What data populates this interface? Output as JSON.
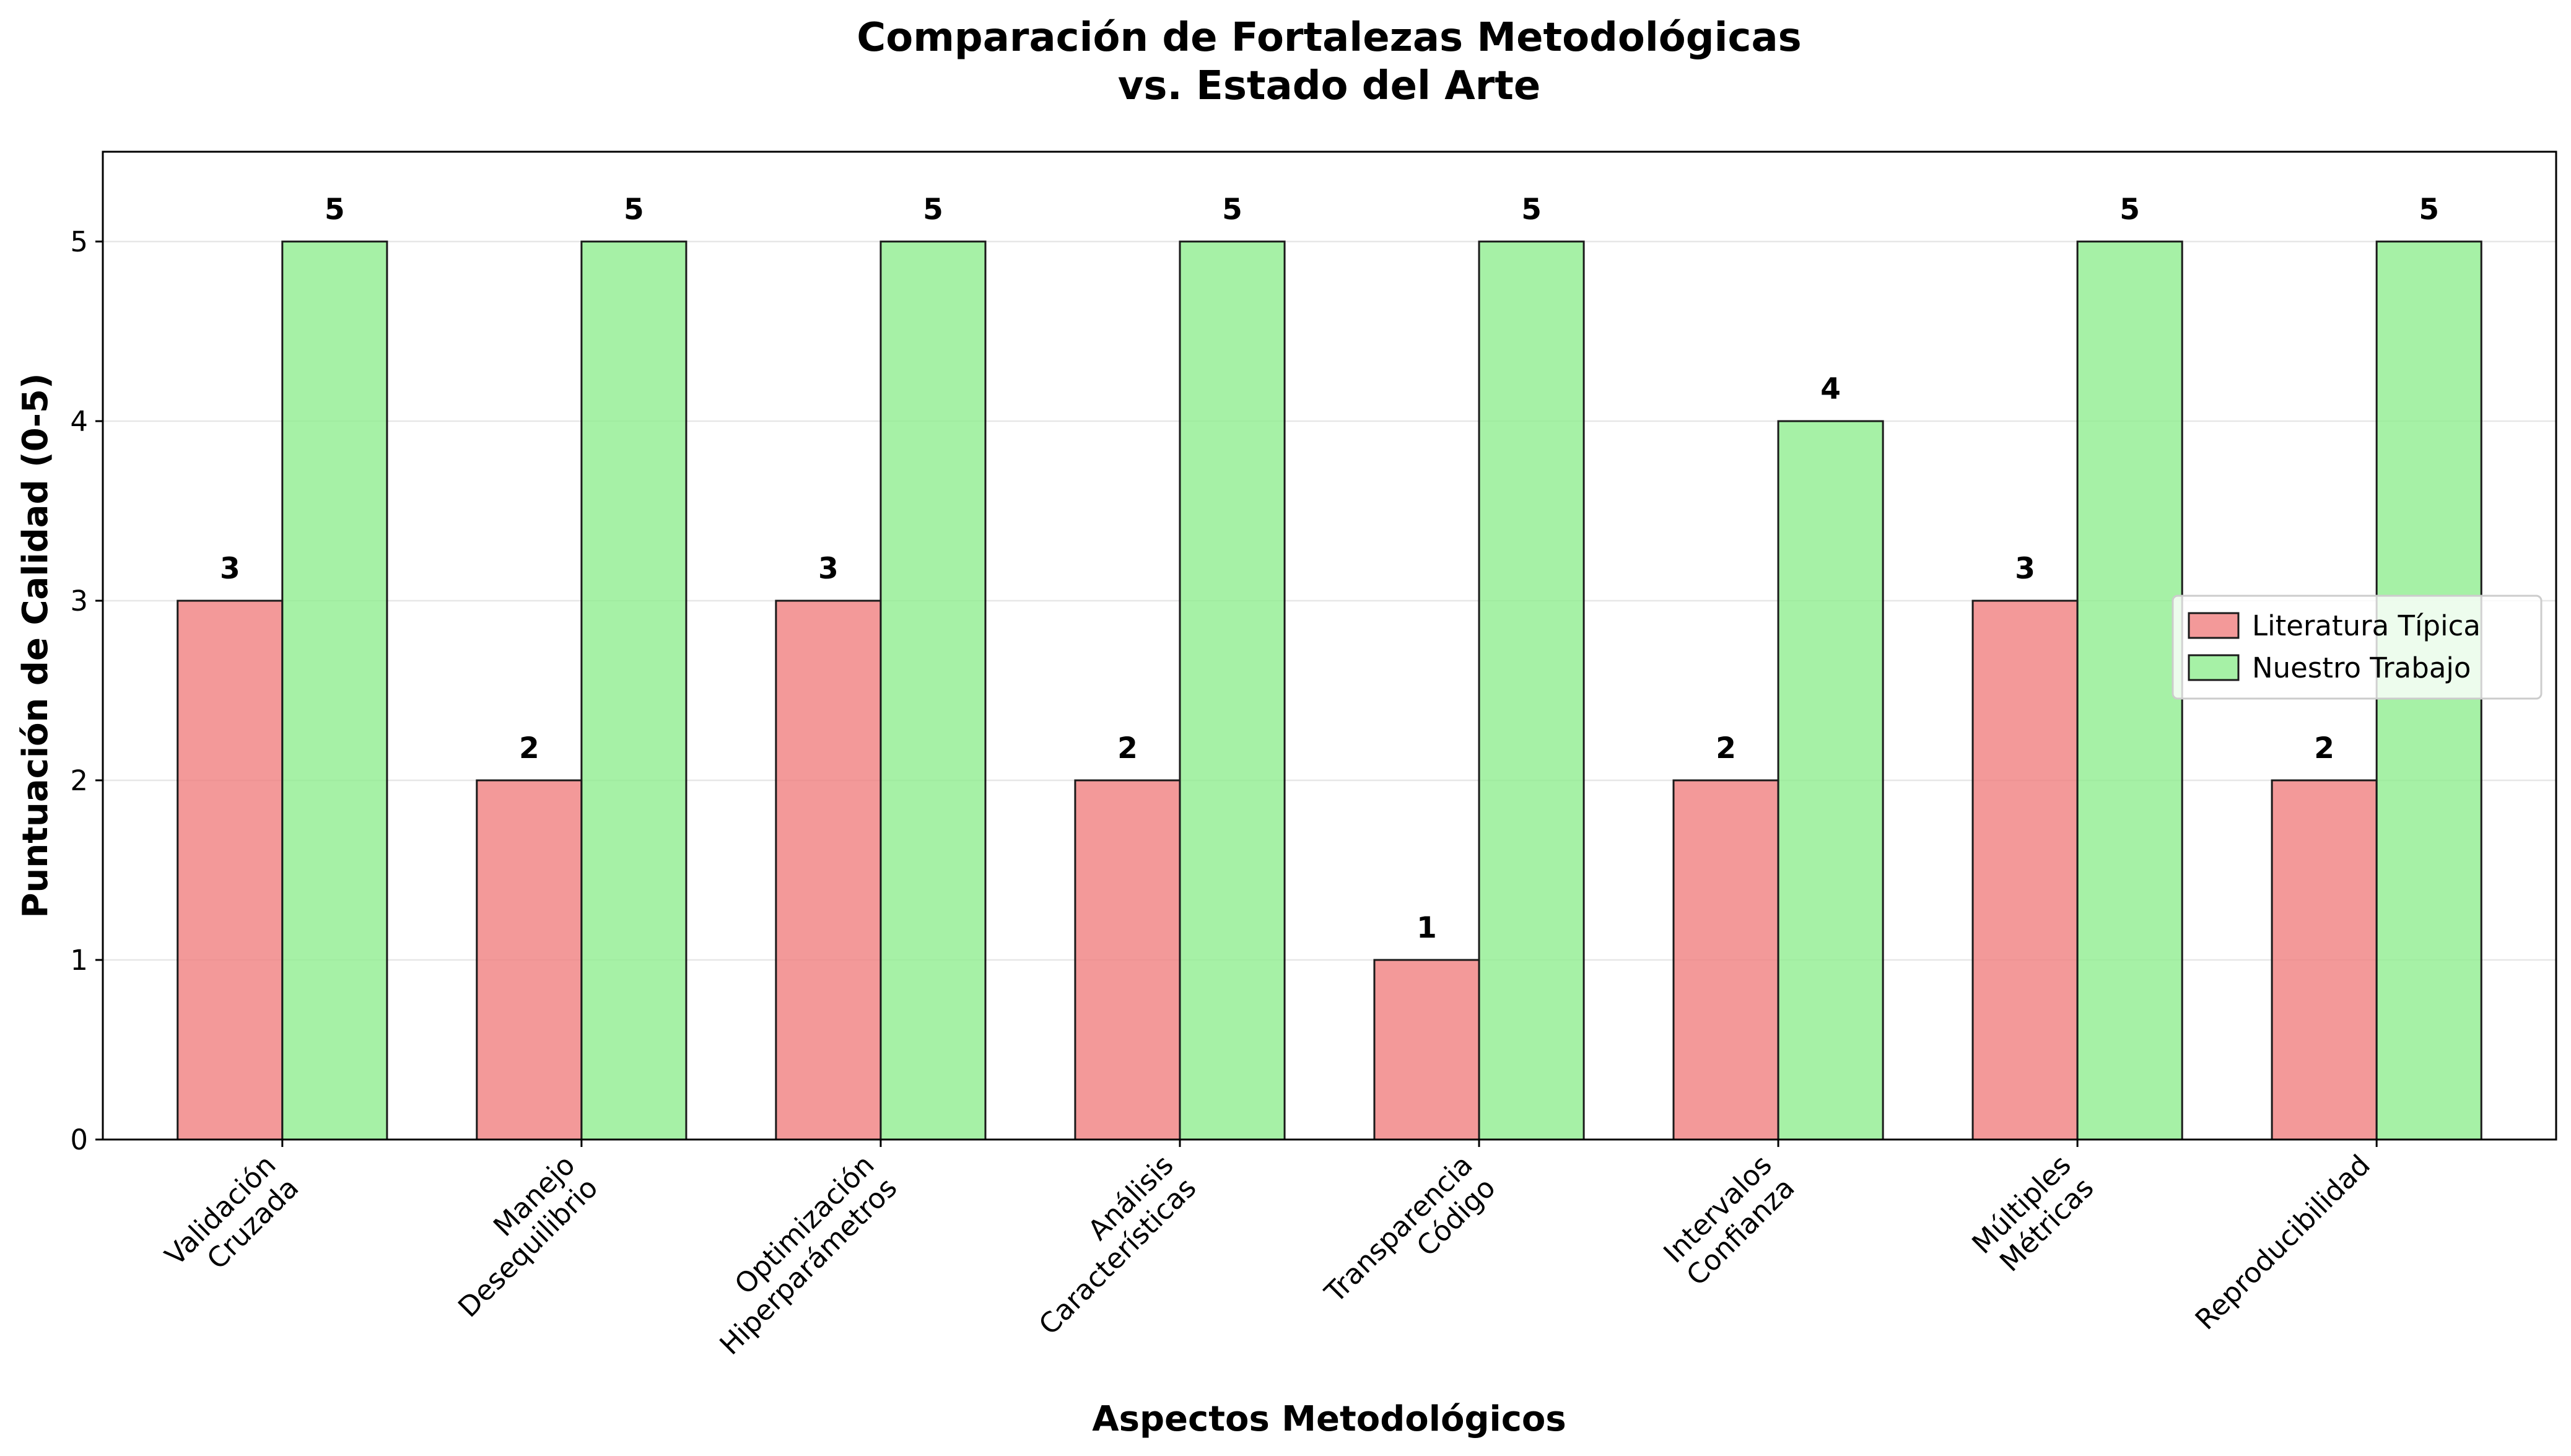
{
  "chart_data": {
    "type": "bar",
    "title": "Comparación de Fortalezas Metodológicas\nvs. Estado del Arte",
    "xlabel": "Aspectos Metodológicos",
    "ylabel": "Puntuación de Calidad (0-5)",
    "ylim": [
      0,
      5.5
    ],
    "yticks": [
      0,
      1,
      2,
      3,
      4,
      5
    ],
    "grid": "y",
    "legend_position": "center-right",
    "categories": [
      "Validación\nCruzada",
      "Manejo\nDesequilibrio",
      "Optimización\nHiperparámetros",
      "Análisis\nCaracterísticas",
      "Transparencia\nCódigo",
      "Intervalos\nConfianza",
      "Múltiples\nMétricas",
      "Reproducibilidad"
    ],
    "series": [
      {
        "name": "Literatura Típica",
        "color": "#f08080",
        "values": [
          3,
          2,
          3,
          2,
          1,
          2,
          3,
          2
        ]
      },
      {
        "name": "Nuestro Trabajo",
        "color": "#90ee90",
        "values": [
          5,
          5,
          5,
          5,
          5,
          4,
          5,
          5
        ]
      }
    ]
  }
}
